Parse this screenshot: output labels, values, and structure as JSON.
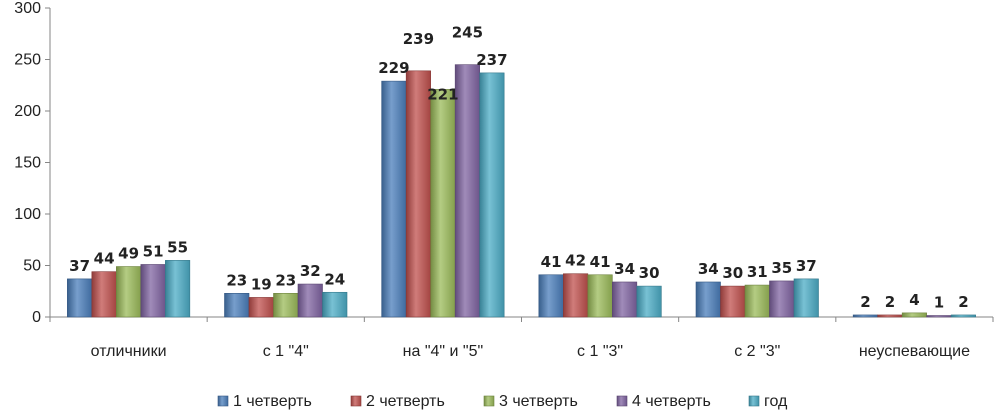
{
  "chart_data": {
    "type": "bar",
    "categories": [
      "отличники",
      "с 1 \"4\"",
      "на \"4\" и \"5\"",
      "с 1 \"3\"",
      "с 2 \"3\"",
      "неуспевающие"
    ],
    "series": [
      {
        "name": "1 четверть",
        "values": [
          37,
          23,
          229,
          41,
          34,
          2
        ],
        "color": "#4a7ebb"
      },
      {
        "name": "2 четверть",
        "values": [
          44,
          19,
          239,
          42,
          30,
          2
        ],
        "color": "#c0504d"
      },
      {
        "name": "3 четверть",
        "values": [
          49,
          23,
          221,
          41,
          31,
          4
        ],
        "color": "#9bbb59"
      },
      {
        "name": "4 четверть",
        "values": [
          51,
          32,
          245,
          34,
          35,
          1
        ],
        "color": "#8064a2"
      },
      {
        "name": "год",
        "values": [
          55,
          24,
          237,
          30,
          37,
          2
        ],
        "color": "#4bacc6"
      }
    ],
    "ylim": [
      0,
      300
    ],
    "yticks": [
      0,
      50,
      100,
      150,
      200,
      250,
      300
    ],
    "grid": false,
    "legend": "bottom",
    "data_labels": true
  }
}
